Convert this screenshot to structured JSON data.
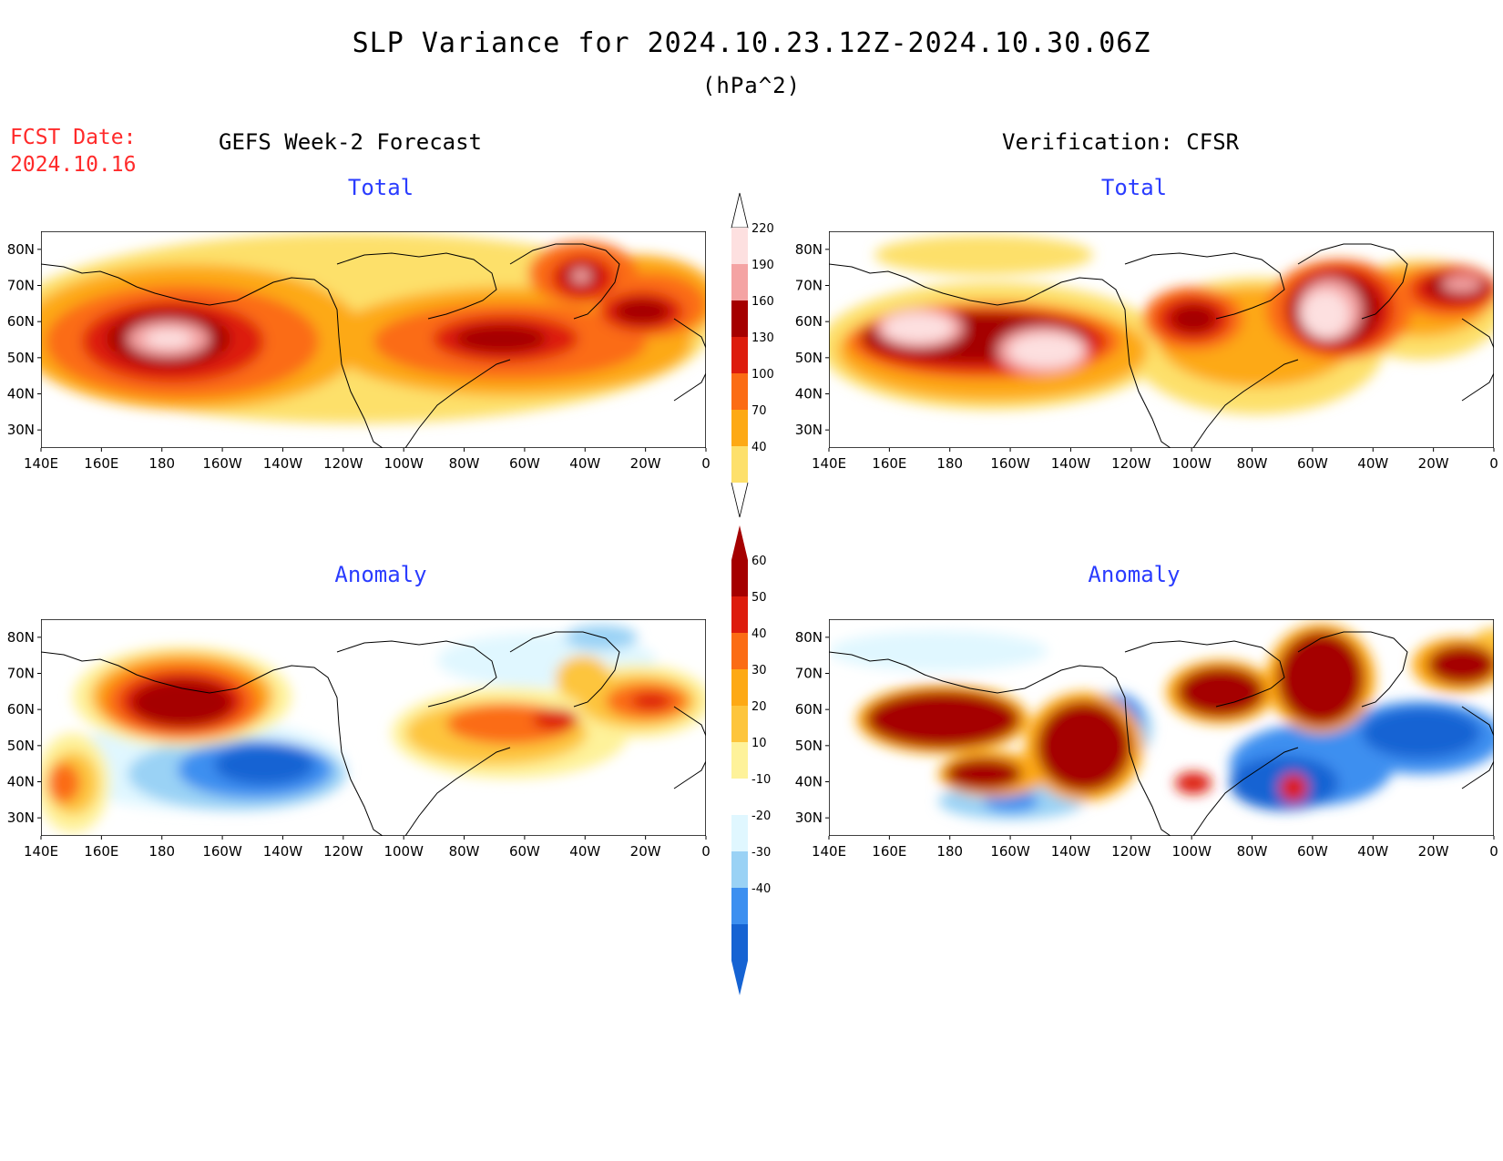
{
  "title": "SLP Variance for 2024.10.23.12Z-2024.10.30.06Z",
  "units": "(hPa^2)",
  "fcst_label": "FCST Date:",
  "fcst_date": "2024.10.16",
  "left_column_title": "GEFS Week-2 Forecast",
  "right_column_title": "Verification: CFSR",
  "panels": [
    {
      "title": "Total"
    },
    {
      "title": "Total"
    },
    {
      "title": "Anomaly"
    },
    {
      "title": "Anomaly"
    }
  ],
  "lon_ticks": [
    "140E",
    "160E",
    "180",
    "160W",
    "140W",
    "120W",
    "100W",
    "80W",
    "60W",
    "40W",
    "20W",
    "0"
  ],
  "lat_ticks": [
    "80N",
    "70N",
    "60N",
    "50N",
    "40N",
    "30N"
  ],
  "total_colorbar": {
    "labels": [
      "220",
      "190",
      "160",
      "130",
      "100",
      "70",
      "40"
    ],
    "colors": [
      "#fde0e0",
      "#f4a3a3",
      "#a50000",
      "#dd1c0c",
      "#fb6c14",
      "#fda914",
      "#fde06b"
    ]
  },
  "anomaly_colorbar": {
    "labels": [
      "60",
      "50",
      "40",
      "30",
      "20",
      "10",
      "-10",
      "-20",
      "-30",
      "-40"
    ],
    "colors": [
      "#a50000",
      "#dd1c0c",
      "#fb6c14",
      "#fda914",
      "#fdc53c",
      "#fef29a",
      "#ffffff",
      "#e0f7ff",
      "#9ad2f5",
      "#3c8ff0",
      "#1563d3"
    ]
  },
  "colors": {
    "title_red": "#ff2a2a",
    "panel_title_blue": "#2a3cff"
  }
}
